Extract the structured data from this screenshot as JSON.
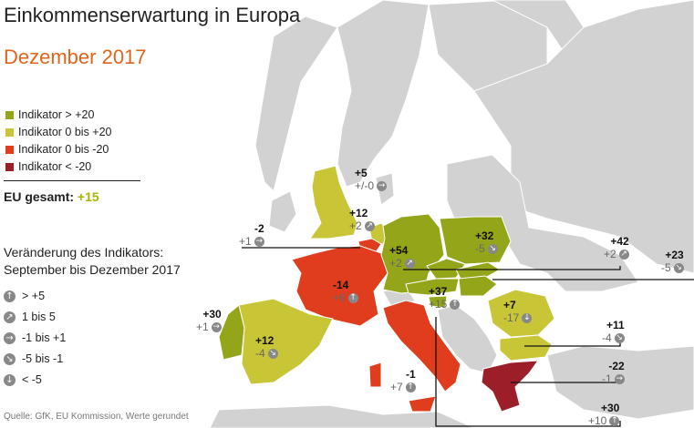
{
  "title": "Einkommenserwartung in Europa",
  "subtitle": "Dezember 2017",
  "colors": {
    "gt20": "#94a51a",
    "0to20": "#c8c537",
    "0tom20": "#e03c1e",
    "ltm20": "#9c1e28",
    "other": "#d2d2d2",
    "subtitle": "#e0641c"
  },
  "legend": [
    {
      "label": "Indikator > +20",
      "color": "#94a51a"
    },
    {
      "label": "Indikator 0 bis +20",
      "color": "#c8c537"
    },
    {
      "label": "Indikator 0 bis -20",
      "color": "#e03c1e"
    },
    {
      "label": "Indikator < -20",
      "color": "#9c1e28"
    }
  ],
  "eu_total": {
    "label": "EU gesamt:",
    "value": "+15"
  },
  "change_title": "Veränderung des Indikators:",
  "change_period": "September bis Dezember 2017",
  "change_legend": [
    {
      "icon": "arrow-up-icon",
      "glyph": "↑",
      "label": "> +5"
    },
    {
      "icon": "arrow-up-right-icon",
      "glyph": "↗",
      "label": "1 bis 5"
    },
    {
      "icon": "arrow-right-icon",
      "glyph": "→",
      "label": "-1 bis +1"
    },
    {
      "icon": "arrow-down-right-icon",
      "glyph": "↘",
      "label": "-5 bis -1"
    },
    {
      "icon": "arrow-down-icon",
      "glyph": "↓",
      "label": "< -5"
    }
  ],
  "source": "Quelle: GfK, EU Kommission, Werte gerundet",
  "countries": [
    {
      "id": "uk",
      "value": "+5",
      "change": "+/-0",
      "icon": "arrow-right-icon",
      "glyph": "→"
    },
    {
      "id": "nl",
      "value": "+12",
      "change": "+2",
      "icon": "arrow-up-right-icon",
      "glyph": "↗"
    },
    {
      "id": "be",
      "value": "-2",
      "change": "+1",
      "icon": "arrow-right-icon",
      "glyph": "→"
    },
    {
      "id": "de",
      "value": "+54",
      "change": "+2",
      "icon": "arrow-up-right-icon",
      "glyph": "↗"
    },
    {
      "id": "pl",
      "value": "+32",
      "change": "-5",
      "icon": "arrow-down-right-icon",
      "glyph": "↘"
    },
    {
      "id": "cz",
      "value": "+42",
      "change": "+2",
      "icon": "arrow-up-right-icon",
      "glyph": "↗"
    },
    {
      "id": "sk",
      "value": "+23",
      "change": "-5",
      "icon": "arrow-down-right-icon",
      "glyph": "↘"
    },
    {
      "id": "fr",
      "value": "-14",
      "change": "+6",
      "icon": "arrow-up-icon",
      "glyph": "↑"
    },
    {
      "id": "at",
      "value": "+37",
      "change": "+15",
      "icon": "arrow-up-icon",
      "glyph": "↑"
    },
    {
      "id": "pt",
      "value": "+30",
      "change": "+1",
      "icon": "arrow-right-icon",
      "glyph": "→"
    },
    {
      "id": "es",
      "value": "+12",
      "change": "-4",
      "icon": "arrow-down-right-icon",
      "glyph": "↘"
    },
    {
      "id": "ro",
      "value": "+7",
      "change": "-17",
      "icon": "arrow-down-icon",
      "glyph": "↓"
    },
    {
      "id": "bg",
      "value": "+11",
      "change": "-4",
      "icon": "arrow-down-right-icon",
      "glyph": "↘"
    },
    {
      "id": "it",
      "value": "-1",
      "change": "+7",
      "icon": "arrow-up-icon",
      "glyph": "↑"
    },
    {
      "id": "gr",
      "value": "-22",
      "change": "-1",
      "icon": "arrow-right-icon",
      "glyph": "→"
    },
    {
      "id": "si",
      "value": "+30",
      "change": "+10",
      "icon": "arrow-up-icon",
      "glyph": "↑"
    }
  ]
}
